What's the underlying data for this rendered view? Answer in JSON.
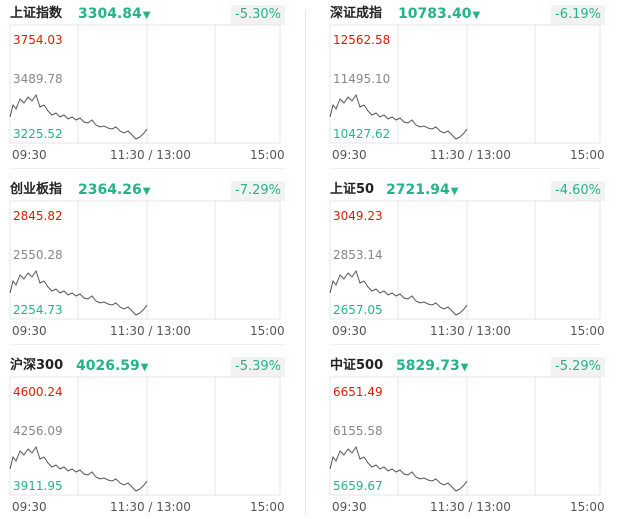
{
  "time_labels": {
    "open": "09:30",
    "mid": "11:30 / 13:00",
    "close": "15:00"
  },
  "colors": {
    "up": "#d81e06",
    "down": "#27b38a",
    "line": "#555555",
    "grid": "#e6e6e6"
  },
  "indices": [
    {
      "name": "上证指数",
      "value": "3304.84",
      "change": "-5.30%",
      "high": "3754.03",
      "mid": "3489.78",
      "low": "3225.52"
    },
    {
      "name": "深证成指",
      "value": "10783.40",
      "change": "-6.19%",
      "high": "12562.58",
      "mid": "11495.10",
      "low": "10427.62"
    },
    {
      "name": "创业板指",
      "value": "2364.26",
      "change": "-7.29%",
      "high": "2845.82",
      "mid": "2550.28",
      "low": "2254.73"
    },
    {
      "name": "上证50",
      "value": "2721.94",
      "change": "-4.60%",
      "high": "3049.23",
      "mid": "2853.14",
      "low": "2657.05"
    },
    {
      "name": "沪深300",
      "value": "4026.59",
      "change": "-5.39%",
      "high": "4600.24",
      "mid": "4256.09",
      "low": "3911.95"
    },
    {
      "name": "中证500",
      "value": "5829.73",
      "change": "-5.29%",
      "high": "6651.49",
      "mid": "6155.58",
      "low": "5659.67"
    }
  ]
}
